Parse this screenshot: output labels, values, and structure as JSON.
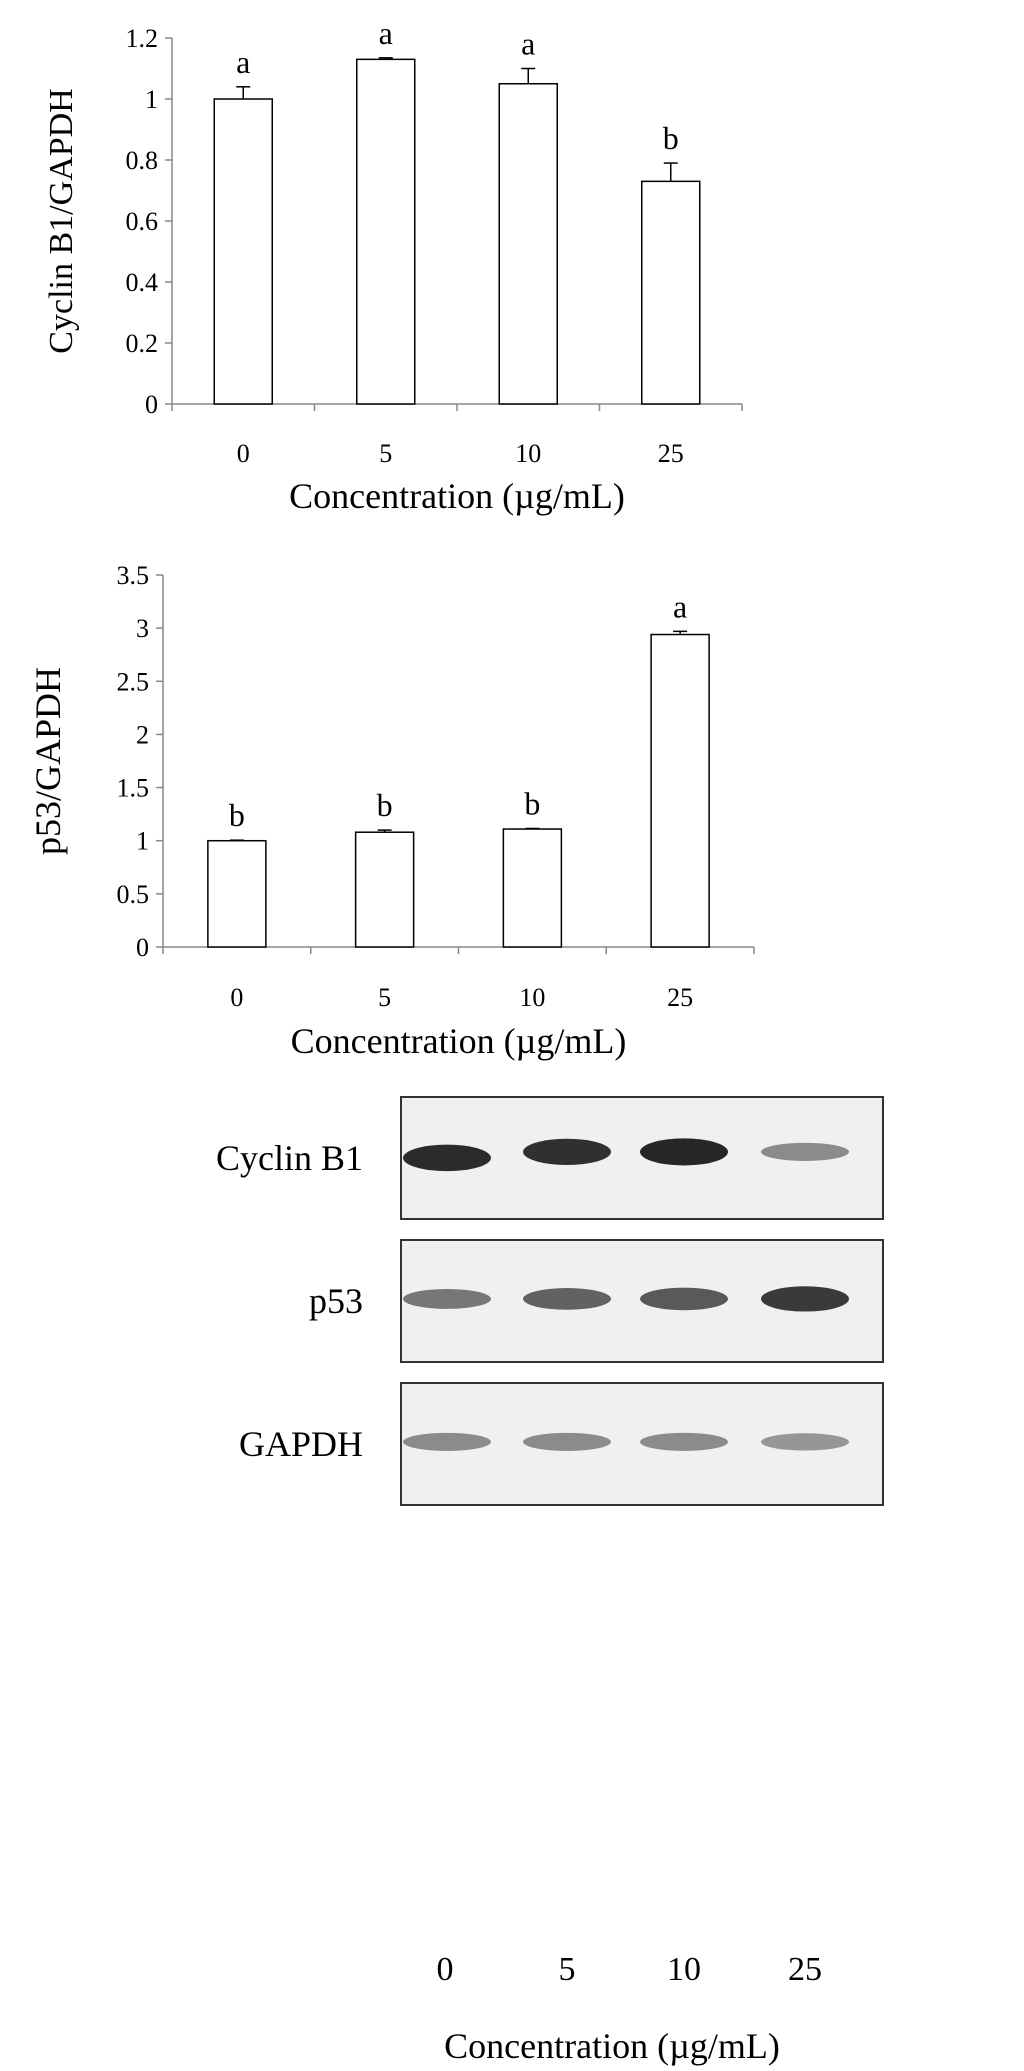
{
  "chart_data": [
    {
      "type": "bar",
      "ylabel": "Cyclin B1/GAPDH",
      "xlabel": "Concentration (µg/mL)",
      "categories": [
        "0",
        "5",
        "10",
        "25"
      ],
      "values": [
        1.0,
        1.13,
        1.05,
        0.73
      ],
      "errors": [
        0.04,
        0.005,
        0.05,
        0.06
      ],
      "letters": [
        "a",
        "a",
        "a",
        "b"
      ],
      "ylim": [
        0,
        1.2
      ],
      "yticks": [
        0,
        0.2,
        0.4,
        0.6,
        0.8,
        1,
        1.2
      ],
      "ytick_labels": [
        "0",
        "0.2",
        "0.4",
        "0.6",
        "0.8",
        "1",
        "1.2"
      ]
    },
    {
      "type": "bar",
      "ylabel": "p53/GAPDH",
      "xlabel": "Concentration (µg/mL)",
      "categories": [
        "0",
        "5",
        "10",
        "25"
      ],
      "values": [
        1.0,
        1.08,
        1.11,
        2.94
      ],
      "errors": [
        0.005,
        0.02,
        0.005,
        0.03
      ],
      "letters": [
        "b",
        "b",
        "b",
        "a"
      ],
      "ylim": [
        0,
        3.5
      ],
      "yticks": [
        0,
        0.5,
        1,
        1.5,
        2,
        2.5,
        3,
        3.5
      ],
      "ytick_labels": [
        "0",
        "0.5",
        "1",
        "1.5",
        "2",
        "2.5",
        "3",
        "3.5"
      ]
    }
  ],
  "blot": {
    "rows": [
      {
        "label": "Cyclin B1",
        "band_intensity": [
          0.92,
          0.9,
          0.95,
          0.45
        ]
      },
      {
        "label": "p53",
        "band_intensity": [
          0.55,
          0.65,
          0.7,
          0.85
        ]
      },
      {
        "label": "GAPDH",
        "band_intensity": [
          0.45,
          0.45,
          0.45,
          0.4
        ]
      }
    ],
    "lanes": [
      "0",
      "5",
      "10",
      "25"
    ],
    "xlabel": "Concentration (µg/mL)"
  }
}
